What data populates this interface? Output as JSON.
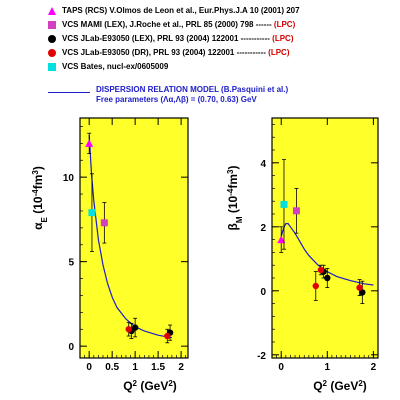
{
  "legend": {
    "entries": [
      {
        "marker": "triangle",
        "color": "#ff00ff",
        "label": "TAPS (RCS) V.Olmos de Leon et al., Eur.Phys.J.A 10 (2001) 207",
        "lpc": ""
      },
      {
        "marker": "square",
        "color": "#d040c0",
        "label": "VCS MAMI (LEX), J.Roche et al., PRL 85 (2000) 798 ------",
        "lpc": "(LPC)"
      },
      {
        "marker": "circle",
        "color": "#000000",
        "label": "VCS JLab-E93050 (LEX), PRL 93 (2004) 122001 -----------",
        "lpc": "(LPC)"
      },
      {
        "marker": "circle",
        "color": "#e00000",
        "label": "VCS JLab-E93050 (DR),  PRL 93 (2004) 122001 -----------",
        "lpc": "(LPC)"
      },
      {
        "marker": "square",
        "color": "#00e0e0",
        "label": "VCS Bates, nucl-ex/0605009",
        "lpc": ""
      }
    ],
    "model_line1": "DISPERSION RELATION MODEL (B.Pasquini et al.)",
    "model_line2": "Free parameters (Λα,Λβ) = (0.70, 0.63) GeV",
    "model_color": "#1c1cc8"
  },
  "colors": {
    "plot_bg": "#ffff2a",
    "curve": "#1c1cc8"
  },
  "chart_data": [
    {
      "type": "scatter",
      "name": "alpha_E",
      "ylabel": "α_E (10^-4 fm^3)",
      "xlabel": "Q² (GeV²)",
      "xlim": [
        -0.2,
        2.15
      ],
      "ylim": [
        -0.7,
        13.5
      ],
      "xticks": [
        0,
        0.5,
        1,
        1.5,
        2
      ],
      "xticklabels": [
        "0",
        "0.5",
        "1",
        "1.5",
        "2"
      ],
      "yticks": [
        0,
        5,
        10
      ],
      "yticklabels": [
        "0",
        "5",
        "10"
      ],
      "points": [
        {
          "set": "TAPS",
          "marker": "triangle",
          "color": "#ff00ff",
          "x": 0.0,
          "y": 12.0,
          "err": 0.6
        },
        {
          "set": "MAMI",
          "marker": "square",
          "color": "#d040c0",
          "x": 0.33,
          "y": 7.3,
          "err": 1.2
        },
        {
          "set": "Bates",
          "marker": "square",
          "color": "#00e0e0",
          "x": 0.06,
          "y": 7.9,
          "err": 2.3
        },
        {
          "set": "JLab-LEX",
          "marker": "circle",
          "color": "#000000",
          "x": 0.92,
          "y": 0.9,
          "err": 0.45
        },
        {
          "set": "JLab-LEX",
          "marker": "circle",
          "color": "#000000",
          "x": 1.0,
          "y": 1.1,
          "err": 0.55
        },
        {
          "set": "JLab-LEX",
          "marker": "circle",
          "color": "#000000",
          "x": 1.76,
          "y": 0.8,
          "err": 0.45
        },
        {
          "set": "JLab-DR",
          "marker": "circle",
          "color": "#e00000",
          "x": 0.86,
          "y": 1.0,
          "err": 0.4
        },
        {
          "set": "JLab-DR",
          "marker": "circle",
          "color": "#e00000",
          "x": 1.7,
          "y": 0.6,
          "err": 0.4
        }
      ],
      "curve": {
        "x": [
          0.0,
          0.05,
          0.1,
          0.2,
          0.3,
          0.4,
          0.5,
          0.6,
          0.8,
          1.0,
          1.2,
          1.5,
          1.8
        ],
        "y": [
          12.5,
          10.2,
          8.6,
          6.3,
          4.8,
          3.7,
          2.9,
          2.3,
          1.6,
          1.15,
          0.9,
          0.65,
          0.5
        ]
      }
    },
    {
      "type": "scatter",
      "name": "beta_M",
      "ylabel": "β_M (10^-4 fm^3)",
      "xlabel": "Q² (GeV²)",
      "xlim": [
        -0.2,
        2.1
      ],
      "ylim": [
        -2.1,
        5.4
      ],
      "xticks": [
        0,
        1,
        2
      ],
      "xticklabels": [
        "0",
        "1",
        "2"
      ],
      "yticks": [
        -2,
        0,
        2,
        4
      ],
      "yticklabels": [
        "-2",
        "0",
        "2",
        "4"
      ],
      "points": [
        {
          "set": "TAPS",
          "marker": "triangle",
          "color": "#ff00ff",
          "x": 0.0,
          "y": 1.6,
          "err": 0.4
        },
        {
          "set": "MAMI",
          "marker": "square",
          "color": "#d040c0",
          "x": 0.33,
          "y": 2.5,
          "err": 0.7
        },
        {
          "set": "Bates",
          "marker": "square",
          "color": "#00e0e0",
          "x": 0.06,
          "y": 2.7,
          "err": 1.4
        },
        {
          "set": "JLab-LEX",
          "marker": "circle",
          "color": "#000000",
          "x": 0.92,
          "y": 0.6,
          "err": 0.2
        },
        {
          "set": "JLab-LEX",
          "marker": "circle",
          "color": "#000000",
          "x": 1.0,
          "y": 0.4,
          "err": 0.3
        },
        {
          "set": "JLab-LEX",
          "marker": "circle",
          "color": "#000000",
          "x": 1.76,
          "y": -0.05,
          "err": 0.35
        },
        {
          "set": "JLab-DR",
          "marker": "circle",
          "color": "#e00000",
          "x": 0.86,
          "y": 0.65,
          "err": 0.15
        },
        {
          "set": "JLab-DR",
          "marker": "circle",
          "color": "#e00000",
          "x": 0.75,
          "y": 0.15,
          "err": 0.45
        },
        {
          "set": "JLab-DR",
          "marker": "circle",
          "color": "#e00000",
          "x": 1.7,
          "y": 0.1,
          "err": 0.25
        }
      ],
      "curve": {
        "x": [
          0.0,
          0.05,
          0.1,
          0.15,
          0.2,
          0.3,
          0.4,
          0.5,
          0.6,
          0.8,
          1.0,
          1.2,
          1.5,
          1.8,
          2.0
        ],
        "y": [
          1.7,
          1.95,
          2.1,
          2.1,
          2.0,
          1.8,
          1.55,
          1.3,
          1.1,
          0.8,
          0.6,
          0.45,
          0.32,
          0.22,
          0.18
        ]
      }
    }
  ]
}
